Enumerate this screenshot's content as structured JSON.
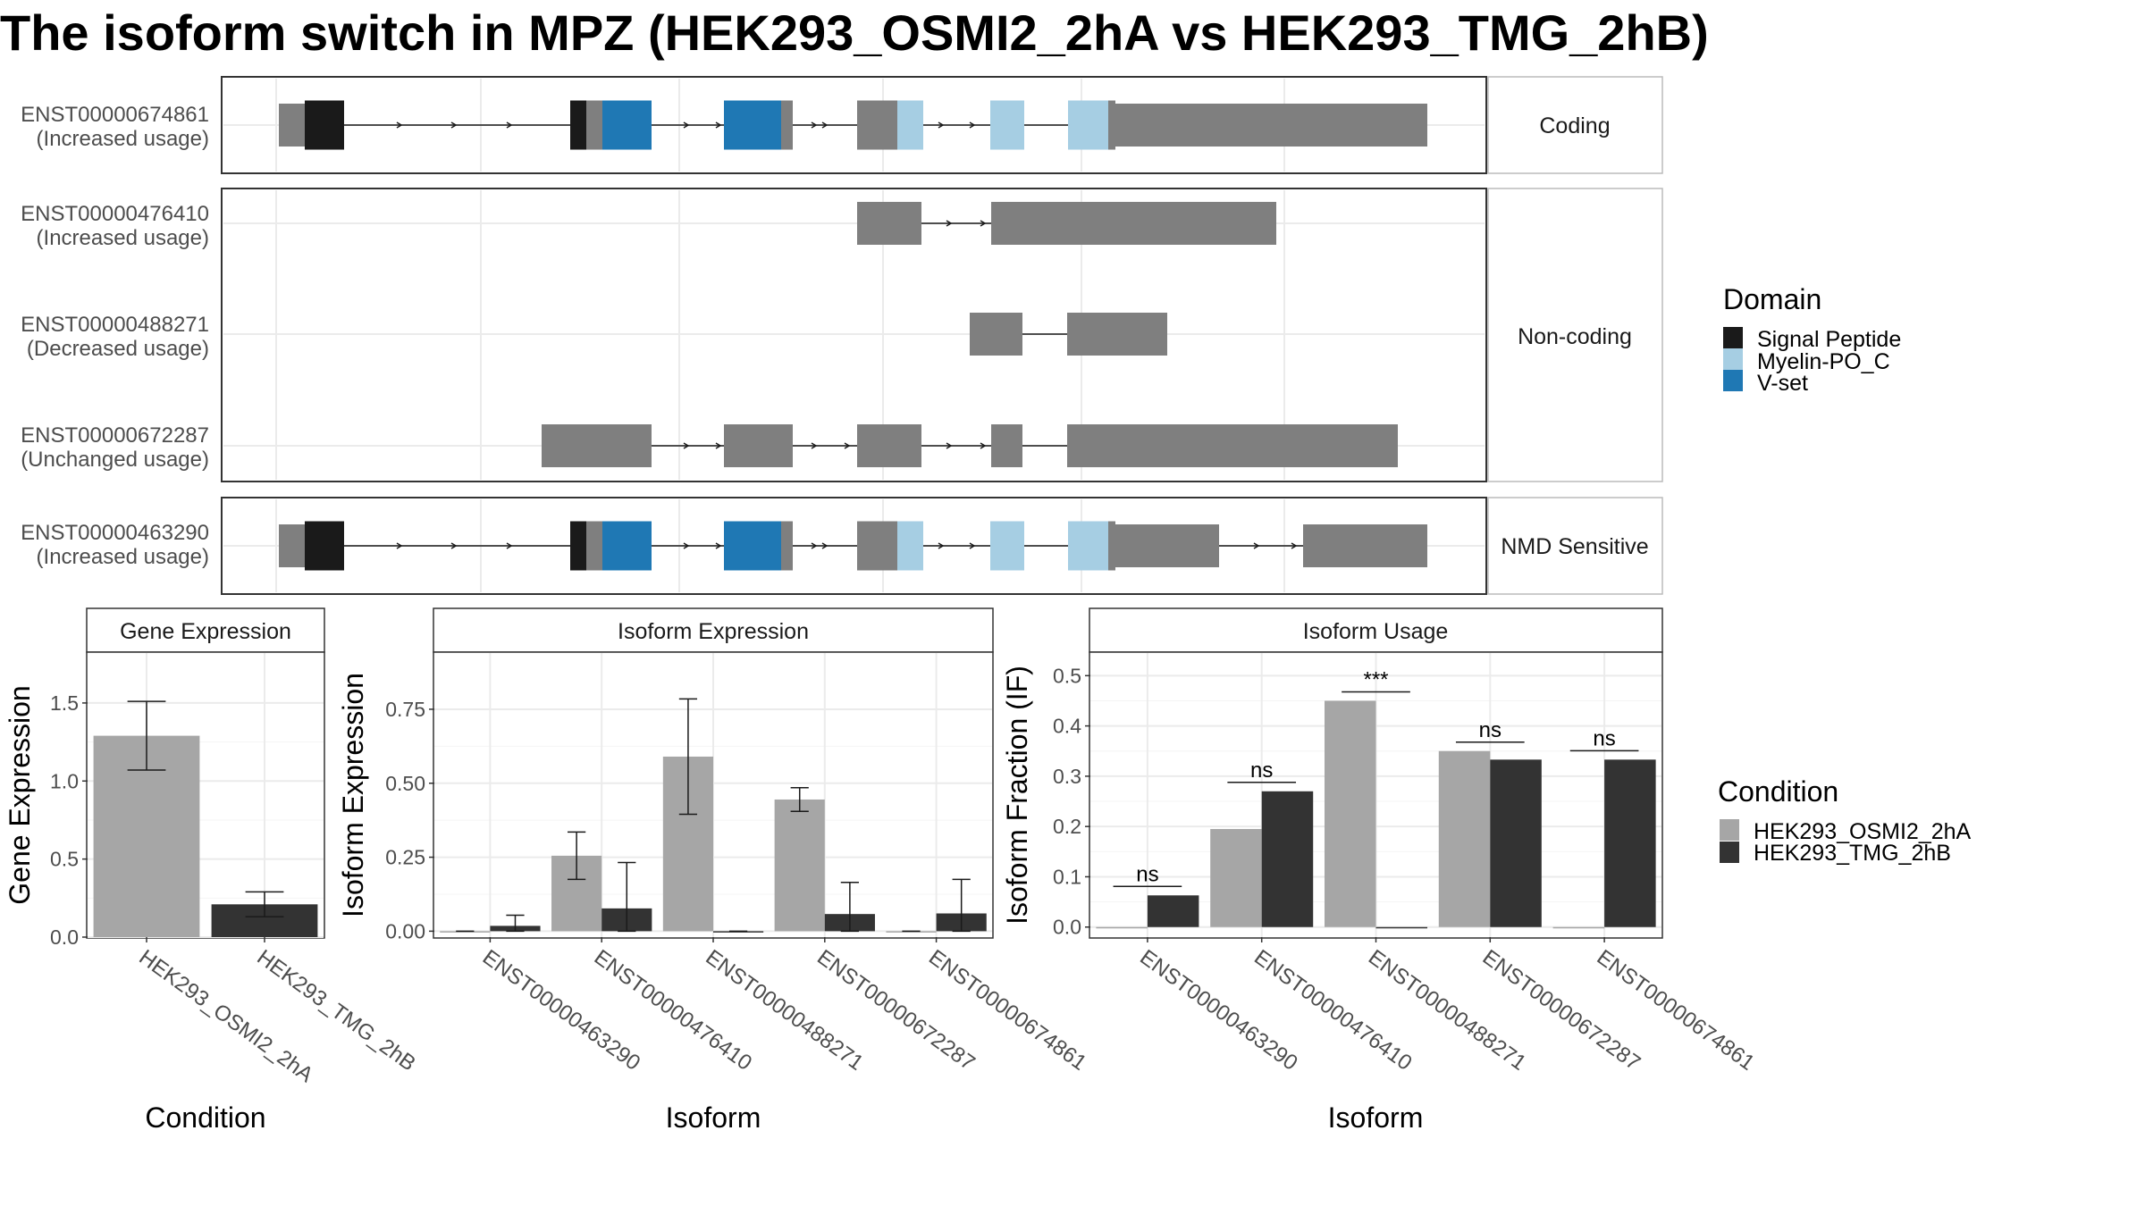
{
  "title": "The isoform switch in MPZ (HEK293_OSMI2_2hA vs HEK293_TMG_2hB)",
  "colors": {
    "signal_peptide": "#1a1a1a",
    "myelin": "#a6cee3",
    "vset": "#1f78b4",
    "exon": "#7f7f7f",
    "cond_a": "#a6a6a6",
    "cond_b": "#333333"
  },
  "transcript_panel": {
    "facets": [
      {
        "label": "Coding",
        "transcripts": [
          {
            "id": "ENST00000674861",
            "usage": "(Increased usage)"
          }
        ]
      },
      {
        "label": "Non-coding",
        "transcripts": [
          {
            "id": "ENST00000476410",
            "usage": "(Increased usage)"
          },
          {
            "id": "ENST00000488271",
            "usage": "(Decreased usage)"
          },
          {
            "id": "ENST00000672287",
            "usage": "(Unchanged usage)"
          }
        ]
      },
      {
        "label": "NMD Sensitive",
        "transcripts": [
          {
            "id": "ENST00000463290",
            "usage": "(Increased usage)"
          }
        ]
      }
    ],
    "legend": {
      "title": "Domain",
      "items": [
        {
          "label": "Signal Peptide",
          "color": "#1a1a1a"
        },
        {
          "label": "Myelin-PO_C",
          "color": "#a6cee3"
        },
        {
          "label": "V-set",
          "color": "#1f78b4"
        }
      ]
    }
  },
  "chart_data": [
    {
      "type": "bar",
      "title": "Gene Expression",
      "xlabel": "Condition",
      "ylabel": "Gene Expression",
      "ylim": [
        0,
        1.82
      ],
      "yticks": [
        "0.0",
        "0.5",
        "1.0",
        "1.5"
      ],
      "categories": [
        "HEK293_OSMI2_2hA",
        "HEK293_TMG_2hB"
      ],
      "values": [
        1.29,
        0.21
      ],
      "errors": [
        [
          1.07,
          1.51
        ],
        [
          0.13,
          0.29
        ]
      ],
      "colors": [
        "#a6a6a6",
        "#333333"
      ]
    },
    {
      "type": "bar",
      "title": "Isoform Expression",
      "xlabel": "Isoform",
      "ylabel": "Isoform Expression",
      "ylim": [
        -0.02,
        0.94
      ],
      "yticks": [
        "0.00",
        "0.25",
        "0.50",
        "0.75"
      ],
      "categories": [
        "ENST00000463290",
        "ENST00000476410",
        "ENST00000488271",
        "ENST00000672287",
        "ENST00000674861"
      ],
      "series": [
        {
          "name": "HEK293_OSMI2_2hA",
          "values": [
            0.0,
            0.255,
            0.59,
            0.445,
            0.0
          ],
          "errors": [
            [
              0.0,
              0.0
            ],
            [
              0.175,
              0.335
            ],
            [
              0.395,
              0.785
            ],
            [
              0.405,
              0.485
            ],
            [
              0.0,
              0.0
            ]
          ]
        },
        {
          "name": "HEK293_TMG_2hB",
          "values": [
            0.018,
            0.077,
            0.0,
            0.058,
            0.06
          ],
          "errors": [
            [
              0.0,
              0.054
            ],
            [
              0.0,
              0.232
            ],
            [
              0.0,
              0.0
            ],
            [
              0.0,
              0.165
            ],
            [
              0.0,
              0.175
            ]
          ]
        }
      ]
    },
    {
      "type": "bar",
      "title": "Isoform Usage",
      "xlabel": "Isoform",
      "ylabel": "Isoform Fraction (IF)",
      "ylim": [
        -0.02,
        0.545
      ],
      "yticks": [
        "0.0",
        "0.1",
        "0.2",
        "0.3",
        "0.4",
        "0.5"
      ],
      "categories": [
        "ENST00000463290",
        "ENST00000476410",
        "ENST00000488271",
        "ENST00000672287",
        "ENST00000674861"
      ],
      "series": [
        {
          "name": "HEK293_OSMI2_2hA",
          "values": [
            0.0,
            0.195,
            0.45,
            0.35,
            0.0
          ]
        },
        {
          "name": "HEK293_TMG_2hB",
          "values": [
            0.063,
            0.27,
            0.0,
            0.333,
            0.333
          ]
        }
      ],
      "significance": [
        "ns",
        "ns",
        "***",
        "ns",
        "ns"
      ]
    }
  ],
  "condition_legend": {
    "title": "Condition",
    "items": [
      {
        "label": "HEK293_OSMI2_2hA",
        "color": "#a6a6a6"
      },
      {
        "label": "HEK293_TMG_2hB",
        "color": "#333333"
      }
    ]
  }
}
